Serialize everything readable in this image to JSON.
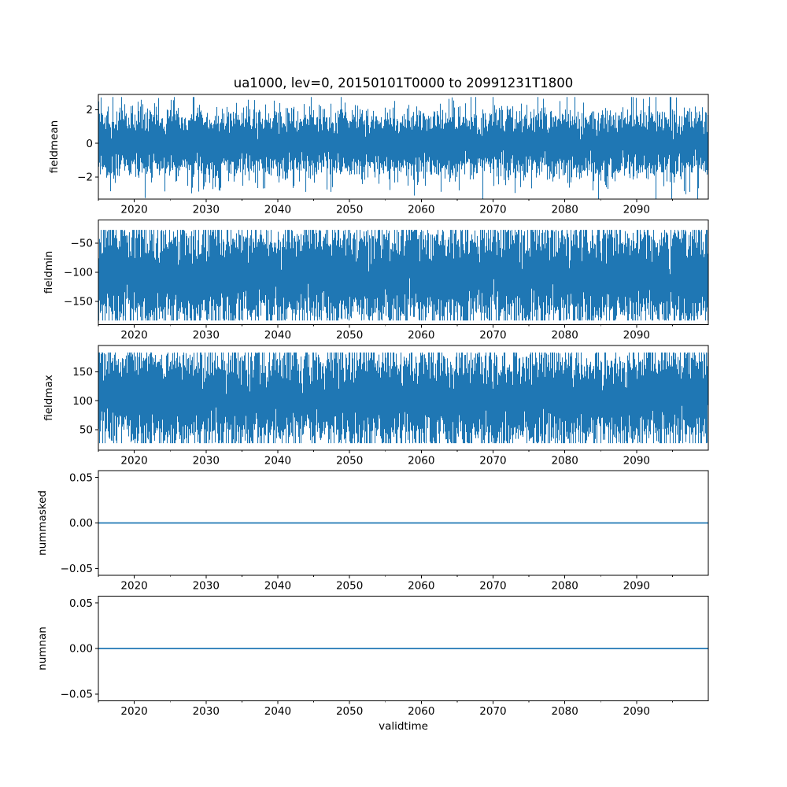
{
  "figure": {
    "title": "ua1000, lev=0, 20150101T0000 to 20991231T1800",
    "xlabel": "validtime",
    "line_color": "#1f77b4",
    "axis_color": "#000000",
    "background": "#ffffff",
    "grid": false,
    "legend": false
  },
  "chart_data": [
    {
      "type": "line",
      "ylabel": "fieldmean",
      "xlim": [
        2015,
        2100
      ],
      "ylim": [
        -3.3,
        2.9
      ],
      "xticks": {
        "values": [
          2020,
          2030,
          2040,
          2050,
          2060,
          2070,
          2080,
          2090
        ],
        "labels": [
          "2020",
          "2030",
          "2040",
          "2050",
          "2060",
          "2070",
          "2080",
          "2090"
        ]
      },
      "xminorticks": [
        2015,
        2025,
        2035,
        2045,
        2055,
        2065,
        2075,
        2085,
        2095
      ],
      "yticks": {
        "values": [
          2,
          0,
          -2
        ],
        "labels": [
          "2",
          "0",
          "−2"
        ]
      },
      "series": [
        {
          "name": "fieldmean",
          "kind": "gaussian-noise",
          "mean": 0,
          "std": 0.9,
          "observed_range": [
            -3.3,
            2.75
          ],
          "seed": 7
        }
      ]
    },
    {
      "type": "line",
      "ylabel": "fieldmin",
      "xlim": [
        2015,
        2100
      ],
      "ylim": [
        -190,
        -10
      ],
      "xticks": {
        "values": [
          2020,
          2030,
          2040,
          2050,
          2060,
          2070,
          2080,
          2090
        ],
        "labels": [
          "2020",
          "2030",
          "2040",
          "2050",
          "2060",
          "2070",
          "2080",
          "2090"
        ]
      },
      "xminorticks": [
        2015,
        2025,
        2035,
        2045,
        2055,
        2065,
        2075,
        2085,
        2095
      ],
      "yticks": {
        "values": [
          -50,
          -100,
          -150
        ],
        "labels": [
          "−50",
          "−100",
          "−150"
        ]
      },
      "series": [
        {
          "name": "fieldmin",
          "kind": "gaussian-noise",
          "mean": -105,
          "std": 40,
          "observed_range": [
            -183,
            -27
          ],
          "seed": 11
        }
      ]
    },
    {
      "type": "line",
      "ylabel": "fieldmax",
      "xlim": [
        2015,
        2100
      ],
      "ylim": [
        15,
        195
      ],
      "xticks": {
        "values": [
          2020,
          2030,
          2040,
          2050,
          2060,
          2070,
          2080,
          2090
        ],
        "labels": [
          "2020",
          "2030",
          "2040",
          "2050",
          "2060",
          "2070",
          "2080",
          "2090"
        ]
      },
      "xminorticks": [
        2015,
        2025,
        2035,
        2045,
        2055,
        2065,
        2075,
        2085,
        2095
      ],
      "yticks": {
        "values": [
          150,
          100,
          50
        ],
        "labels": [
          "150",
          "100",
          "50"
        ]
      },
      "series": [
        {
          "name": "fieldmax",
          "kind": "gaussian-noise",
          "mean": 105,
          "std": 40,
          "observed_range": [
            27,
            183
          ],
          "seed": 13
        }
      ]
    },
    {
      "type": "line",
      "ylabel": "nummasked",
      "xlim": [
        2015,
        2100
      ],
      "ylim": [
        -0.0575,
        0.0575
      ],
      "xticks": {
        "values": [
          2020,
          2030,
          2040,
          2050,
          2060,
          2070,
          2080,
          2090
        ],
        "labels": [
          "2020",
          "2030",
          "2040",
          "2050",
          "2060",
          "2070",
          "2080",
          "2090"
        ]
      },
      "xminorticks": [
        2015,
        2025,
        2035,
        2045,
        2055,
        2065,
        2075,
        2085,
        2095
      ],
      "yticks": {
        "values": [
          0.05,
          0,
          -0.05
        ],
        "labels": [
          "0.05",
          "0.00",
          "−0.05"
        ]
      },
      "series": [
        {
          "name": "nummasked",
          "kind": "constant",
          "value": 0,
          "observed_range": [
            0,
            0
          ]
        }
      ]
    },
    {
      "type": "line",
      "ylabel": "numnan",
      "xlim": [
        2015,
        2100
      ],
      "ylim": [
        -0.0575,
        0.0575
      ],
      "xticks": {
        "values": [
          2020,
          2030,
          2040,
          2050,
          2060,
          2070,
          2080,
          2090
        ],
        "labels": [
          "2020",
          "2030",
          "2040",
          "2050",
          "2060",
          "2070",
          "2080",
          "2090"
        ]
      },
      "xminorticks": [
        2015,
        2025,
        2035,
        2045,
        2055,
        2065,
        2075,
        2085,
        2095
      ],
      "yticks": {
        "values": [
          0.05,
          0,
          -0.05
        ],
        "labels": [
          "0.05",
          "0.00",
          "−0.05"
        ]
      },
      "series": [
        {
          "name": "numnan",
          "kind": "constant",
          "value": 0,
          "observed_range": [
            0,
            0
          ]
        }
      ]
    }
  ]
}
